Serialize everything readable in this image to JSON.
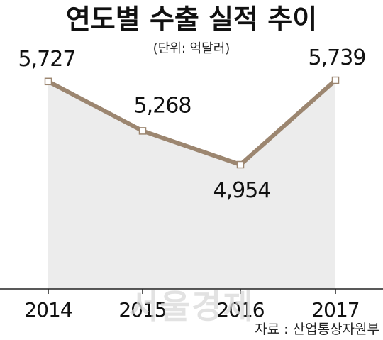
{
  "chart_data": {
    "type": "area",
    "title": "연도별 수출 실적 추이",
    "subtitle": "(단위: 억달러)",
    "categories": [
      "2014",
      "2015",
      "2016",
      "2017"
    ],
    "values": [
      5727,
      5268,
      4954,
      5739
    ],
    "data_labels": [
      "5,727",
      "5,268",
      "4,954",
      "5,739"
    ],
    "ylim": [
      3800,
      5950
    ],
    "grid": false,
    "colors": {
      "line": "#9c8670",
      "fill": "#ececec",
      "marker_fill": "#ffffff",
      "axis": "#222222"
    }
  },
  "source": "자료 : 산업통상자원부",
  "watermark": "서울경제"
}
